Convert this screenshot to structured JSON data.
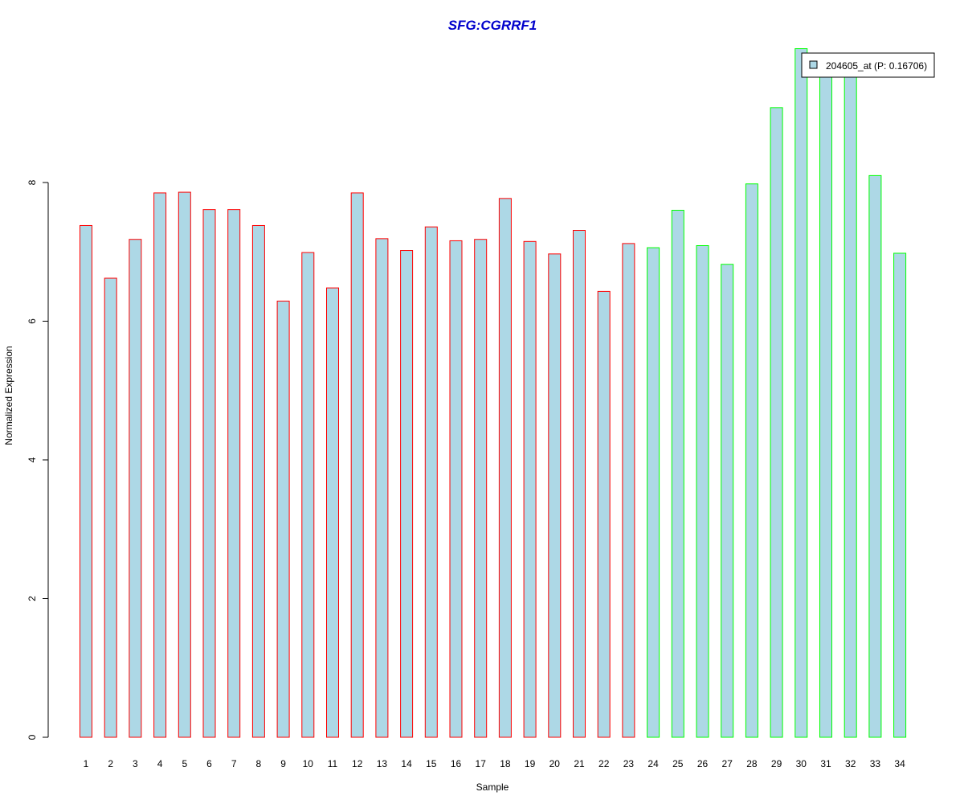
{
  "chart_data": {
    "type": "bar",
    "title": "SFG:CGRRF1",
    "xlabel": "Sample",
    "ylabel": "Normalized Expression",
    "ylim": [
      0,
      10
    ],
    "yticks": [
      0,
      2,
      4,
      6,
      8
    ],
    "grid": false,
    "legend_position": "top-right",
    "categories": [
      "1",
      "2",
      "3",
      "4",
      "5",
      "6",
      "7",
      "8",
      "9",
      "10",
      "11",
      "12",
      "13",
      "14",
      "15",
      "16",
      "17",
      "18",
      "19",
      "20",
      "21",
      "22",
      "23",
      "24",
      "25",
      "26",
      "27",
      "28",
      "29",
      "30",
      "31",
      "32",
      "33",
      "34"
    ],
    "series": [
      {
        "name": "204605_at (P: 0.16706)",
        "values": [
          7.38,
          6.62,
          7.18,
          7.85,
          7.86,
          7.61,
          7.61,
          7.38,
          6.29,
          6.99,
          6.48,
          7.85,
          7.19,
          7.02,
          7.36,
          7.16,
          7.18,
          7.77,
          7.15,
          6.97,
          7.31,
          6.43,
          7.12,
          7.06,
          7.6,
          7.09,
          6.82,
          7.98,
          9.08,
          9.93,
          9.6,
          9.6,
          8.1,
          6.98
        ]
      }
    ],
    "group_of_each_bar": [
      "a",
      "a",
      "a",
      "a",
      "a",
      "a",
      "a",
      "a",
      "a",
      "a",
      "a",
      "a",
      "a",
      "a",
      "a",
      "a",
      "a",
      "a",
      "a",
      "a",
      "a",
      "a",
      "a",
      "b",
      "b",
      "b",
      "b",
      "b",
      "b",
      "b",
      "b",
      "b",
      "b",
      "b"
    ],
    "colors": {
      "bar_fill": "#add8e6",
      "group_a_border": "#ff0000",
      "group_b_border": "#00ff00",
      "title": "#0000cc",
      "axis": "#000000"
    }
  }
}
